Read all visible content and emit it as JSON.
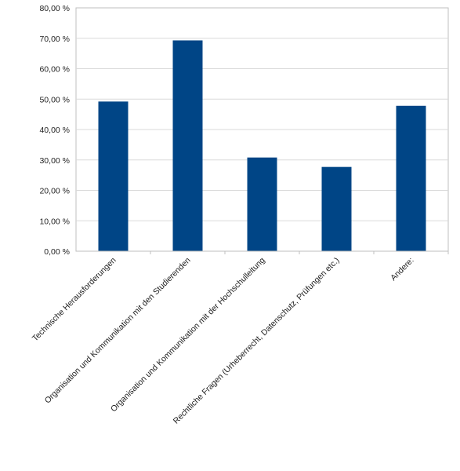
{
  "chart_data": {
    "type": "bar",
    "title": "",
    "xlabel": "",
    "ylabel": "",
    "categories": [
      "Technische Herausforderungen",
      "Organisation und Kommunikation mit den Studierenden",
      "Organisation und Kommunikation mit der Hochschulleitung",
      "Rechtliche Fragen (Urheberrecht, Datenschutz, Prüfungen etc.)",
      "Andere:"
    ],
    "values": [
      49.2,
      69.3,
      30.8,
      27.7,
      47.8
    ],
    "ylim": [
      0,
      80
    ],
    "yticks": [
      0,
      10,
      20,
      30,
      40,
      50,
      60,
      70,
      80
    ],
    "ytick_labels": [
      "0,00 %",
      "10,00 %",
      "20,00 %",
      "30,00 %",
      "40,00 %",
      "50,00 %",
      "60,00 %",
      "70,00 %",
      "80,00 %"
    ],
    "grid": true,
    "legend": "none",
    "colors": {
      "bar": "#004586",
      "grid": "#d9d9d9",
      "axis": "#bfbfbf",
      "frame": "#bfbfbf"
    }
  }
}
